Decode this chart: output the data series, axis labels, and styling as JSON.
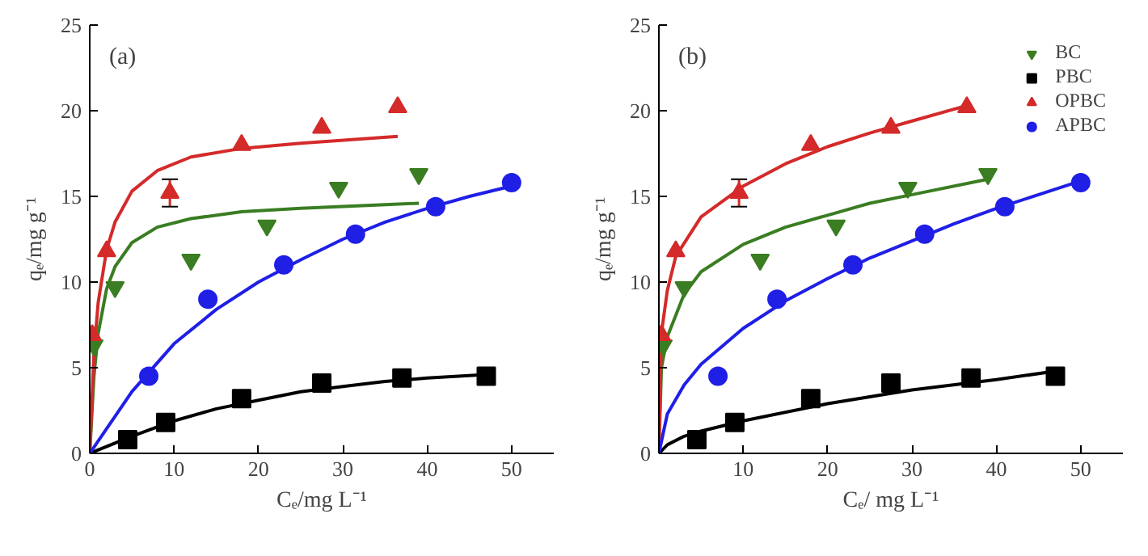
{
  "chart_data": [
    {
      "type": "scatter",
      "xlabel": "Cₑ/mg L⁻¹",
      "ylabel": "qₑ/mg g⁻¹",
      "annotations": [
        "(a)"
      ],
      "xlim": [
        0,
        55
      ],
      "ylim": [
        0,
        25
      ],
      "xticks": [
        0,
        10,
        20,
        30,
        40,
        50
      ],
      "yticks": [
        0,
        5,
        10,
        15,
        20,
        25
      ],
      "grid": false,
      "legend": false,
      "series": [
        {
          "type": "line",
          "color": "#3a7d22",
          "x": [
            0,
            0.5,
            1,
            2,
            3,
            5,
            8,
            12,
            18,
            25,
            39
          ],
          "values": [
            0,
            4.5,
            7,
            9.6,
            10.9,
            12.3,
            13.2,
            13.7,
            14.1,
            14.3,
            14.6
          ]
        },
        {
          "type": "line",
          "color": "#000000",
          "x": [
            0,
            5,
            10,
            15,
            20,
            25,
            30,
            35,
            40,
            47
          ],
          "values": [
            0,
            1.0,
            1.9,
            2.6,
            3.1,
            3.6,
            3.9,
            4.2,
            4.4,
            4.6
          ]
        },
        {
          "type": "line",
          "color": "#d42a2a",
          "x": [
            0,
            0.5,
            1,
            2,
            3,
            5,
            8,
            12,
            18,
            25,
            36.5
          ],
          "values": [
            0,
            5.8,
            8.8,
            11.9,
            13.5,
            15.3,
            16.5,
            17.3,
            17.8,
            18.1,
            18.5
          ]
        },
        {
          "type": "line",
          "color": "#1f1fe6",
          "x": [
            0,
            5,
            10,
            15,
            20,
            25,
            30,
            35,
            40,
            45,
            50
          ],
          "values": [
            0,
            3.6,
            6.4,
            8.4,
            10,
            11.3,
            12.5,
            13.5,
            14.3,
            15,
            15.6
          ]
        },
        {
          "color": "#3a7d22",
          "x": [
            0.5,
            3,
            12,
            21,
            29.5,
            39
          ],
          "values": [
            6.3,
            9.7,
            11.3,
            13.3,
            15.5,
            16.3
          ]
        },
        {
          "marker": "square",
          "color": "#000000",
          "x": [
            4.5,
            9,
            18,
            27.5,
            37,
            47
          ],
          "values": [
            0.8,
            1.8,
            3.2,
            4.1,
            4.4,
            4.5
          ]
        },
        {
          "marker": "triangle",
          "color": "#d42a2a",
          "x": [
            0.3,
            2,
            9.5,
            18,
            27.5,
            36.5
          ],
          "values": [
            6.9,
            11.8,
            15.2,
            18.0,
            19.0,
            20.2
          ],
          "errors": [
            null,
            null,
            0.8,
            null,
            null,
            null
          ]
        },
        {
          "marker": "circle",
          "color": "#1f1fe6",
          "x": [
            7,
            14,
            23,
            31.5,
            41,
            50
          ],
          "values": [
            4.5,
            9.0,
            11.0,
            12.8,
            14.4,
            15.8
          ]
        }
      ]
    },
    {
      "type": "scatter",
      "xlabel": "Cₑ/ mg L⁻¹",
      "ylabel": "qₑ/mg g⁻¹",
      "annotations": [
        "(b)"
      ],
      "xlim": [
        0,
        55
      ],
      "ylim": [
        0,
        25
      ],
      "xticks": [
        {
          "value": 0,
          "label": null
        },
        10,
        20,
        30,
        40,
        50
      ],
      "yticks": [
        0,
        5,
        10,
        15,
        20,
        25
      ],
      "grid": false,
      "legend": "top right",
      "series": [
        {
          "type": "line",
          "color": "#3a7d22",
          "x": [
            0,
            0.3,
            1,
            3,
            5,
            10,
            15,
            20,
            25,
            30,
            39
          ],
          "values": [
            0,
            5,
            6.8,
            9.3,
            10.6,
            12.2,
            13.2,
            13.9,
            14.6,
            15.1,
            16
          ]
        },
        {
          "type": "line",
          "color": "#000000",
          "x": [
            0,
            1,
            3,
            5,
            10,
            20,
            30,
            40,
            47
          ],
          "values": [
            0,
            0.5,
            1.0,
            1.3,
            1.9,
            2.9,
            3.7,
            4.3,
            4.8
          ]
        },
        {
          "type": "line",
          "color": "#d42a2a",
          "x": [
            0,
            0.3,
            1,
            2,
            5,
            10,
            15,
            20,
            25,
            30,
            36.5
          ],
          "values": [
            0,
            7,
            9.5,
            11.5,
            13.8,
            15.6,
            16.9,
            17.9,
            18.7,
            19.4,
            20.3
          ]
        },
        {
          "type": "line",
          "color": "#1f1fe6",
          "x": [
            0,
            1,
            3,
            5,
            10,
            15,
            20,
            25,
            30,
            35,
            40,
            45,
            50
          ],
          "values": [
            0,
            2.3,
            4.0,
            5.2,
            7.3,
            8.9,
            10.2,
            11.4,
            12.4,
            13.4,
            14.3,
            15.1,
            15.9
          ]
        },
        {
          "name": "BC",
          "color": "#3a7d22",
          "x": [
            0.5,
            3,
            12,
            21,
            29.5,
            39
          ],
          "values": [
            6.3,
            9.7,
            11.3,
            13.3,
            15.5,
            16.3
          ]
        },
        {
          "name": "PBC",
          "marker": "square",
          "color": "#000000",
          "x": [
            4.5,
            9,
            18,
            27.5,
            37,
            47
          ],
          "values": [
            0.8,
            1.8,
            3.2,
            4.1,
            4.4,
            4.5
          ]
        },
        {
          "name": "OPBC",
          "marker": "triangle",
          "color": "#d42a2a",
          "x": [
            0.3,
            2,
            9.5,
            18,
            27.5,
            36.5
          ],
          "values": [
            6.9,
            11.8,
            15.2,
            18.0,
            19.0,
            20.2
          ],
          "errors": [
            null,
            null,
            0.8,
            null,
            null,
            null
          ]
        },
        {
          "name": "APBC",
          "marker": "circle",
          "color": "#1f1fe6",
          "x": [
            7,
            14,
            23,
            31.5,
            41,
            50
          ],
          "values": [
            4.5,
            9.0,
            11.0,
            12.8,
            14.4,
            15.8
          ]
        }
      ]
    }
  ]
}
